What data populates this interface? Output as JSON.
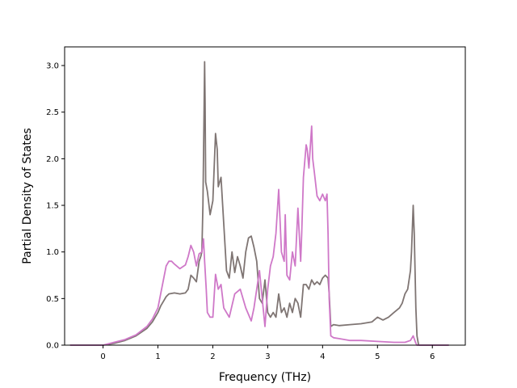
{
  "chart_data": {
    "type": "line",
    "title": "",
    "xlabel": "Frequency (THz)",
    "ylabel": "Partial Density of States",
    "xlim": [
      -0.7,
      6.6
    ],
    "ylim": [
      0.0,
      3.2
    ],
    "xticks": [
      0,
      1,
      2,
      3,
      4,
      5,
      6
    ],
    "yticks": [
      0.0,
      0.5,
      1.0,
      1.5,
      2.0,
      2.5,
      3.0
    ],
    "xtick_labels": [
      "0",
      "1",
      "2",
      "3",
      "4",
      "5",
      "6"
    ],
    "ytick_labels": [
      "0.0",
      "0.5",
      "1.0",
      "1.5",
      "2.0",
      "2.5",
      "3.0"
    ],
    "grid": false,
    "legend": "none",
    "series": [
      {
        "color": "#7f7573",
        "x": [
          -0.6,
          0.0,
          0.2,
          0.4,
          0.6,
          0.8,
          0.9,
          1.0,
          1.05,
          1.1,
          1.15,
          1.2,
          1.3,
          1.4,
          1.5,
          1.55,
          1.6,
          1.65,
          1.7,
          1.75,
          1.78,
          1.8,
          1.82,
          1.84,
          1.85,
          1.86,
          1.87,
          1.9,
          1.95,
          2.0,
          2.05,
          2.08,
          2.1,
          2.15,
          2.2,
          2.25,
          2.3,
          2.35,
          2.4,
          2.45,
          2.5,
          2.55,
          2.6,
          2.65,
          2.7,
          2.75,
          2.8,
          2.85,
          2.9,
          2.95,
          3.0,
          3.05,
          3.1,
          3.15,
          3.2,
          3.25,
          3.3,
          3.35,
          3.4,
          3.45,
          3.5,
          3.55,
          3.6,
          3.65,
          3.7,
          3.75,
          3.8,
          3.85,
          3.9,
          3.95,
          4.0,
          4.05,
          4.1,
          4.12,
          4.15,
          4.2,
          4.3,
          4.5,
          4.7,
          4.9,
          5.0,
          5.1,
          5.2,
          5.3,
          5.4,
          5.45,
          5.5,
          5.55,
          5.6,
          5.62,
          5.65,
          5.67,
          5.7,
          5.72,
          5.75,
          6.0,
          6.3
        ],
        "y": [
          0.0,
          0.0,
          0.02,
          0.05,
          0.1,
          0.18,
          0.25,
          0.35,
          0.42,
          0.47,
          0.52,
          0.55,
          0.56,
          0.55,
          0.56,
          0.6,
          0.75,
          0.72,
          0.68,
          0.9,
          0.95,
          1.0,
          1.5,
          2.5,
          3.04,
          2.6,
          1.75,
          1.65,
          1.4,
          1.55,
          2.27,
          2.1,
          1.7,
          1.8,
          1.3,
          0.8,
          0.72,
          1.0,
          0.78,
          0.95,
          0.85,
          0.72,
          1.0,
          1.15,
          1.17,
          1.05,
          0.9,
          0.5,
          0.45,
          0.7,
          0.35,
          0.3,
          0.35,
          0.3,
          0.55,
          0.35,
          0.4,
          0.3,
          0.45,
          0.35,
          0.5,
          0.45,
          0.3,
          0.65,
          0.65,
          0.6,
          0.7,
          0.65,
          0.68,
          0.65,
          0.72,
          0.75,
          0.72,
          0.55,
          0.2,
          0.22,
          0.21,
          0.22,
          0.23,
          0.25,
          0.3,
          0.27,
          0.3,
          0.35,
          0.4,
          0.45,
          0.55,
          0.6,
          0.8,
          1.0,
          1.5,
          1.2,
          0.4,
          0.1,
          0.0,
          0.0,
          0.0
        ]
      },
      {
        "color": "#cf78c8",
        "x": [
          -0.6,
          0.0,
          0.2,
          0.4,
          0.6,
          0.8,
          0.9,
          1.0,
          1.05,
          1.1,
          1.15,
          1.2,
          1.25,
          1.3,
          1.4,
          1.5,
          1.55,
          1.6,
          1.65,
          1.7,
          1.75,
          1.8,
          1.83,
          1.85,
          1.88,
          1.9,
          1.95,
          2.0,
          2.05,
          2.1,
          2.15,
          2.2,
          2.3,
          2.4,
          2.5,
          2.6,
          2.7,
          2.75,
          2.8,
          2.85,
          2.9,
          2.95,
          3.0,
          3.05,
          3.1,
          3.15,
          3.2,
          3.25,
          3.3,
          3.32,
          3.35,
          3.4,
          3.45,
          3.5,
          3.55,
          3.6,
          3.62,
          3.65,
          3.7,
          3.72,
          3.75,
          3.8,
          3.82,
          3.85,
          3.9,
          3.95,
          4.0,
          4.05,
          4.08,
          4.1,
          4.12,
          4.15,
          4.2,
          4.3,
          4.5,
          4.7,
          5.0,
          5.3,
          5.5,
          5.6,
          5.65,
          5.7,
          5.72,
          6.0,
          6.3
        ],
        "y": [
          0.0,
          0.0,
          0.03,
          0.06,
          0.11,
          0.2,
          0.28,
          0.4,
          0.55,
          0.7,
          0.85,
          0.9,
          0.9,
          0.87,
          0.82,
          0.86,
          0.95,
          1.07,
          1.0,
          0.85,
          0.98,
          1.0,
          1.14,
          0.9,
          0.6,
          0.35,
          0.3,
          0.3,
          0.76,
          0.6,
          0.65,
          0.4,
          0.3,
          0.55,
          0.6,
          0.4,
          0.26,
          0.4,
          0.6,
          0.8,
          0.5,
          0.2,
          0.6,
          0.85,
          0.95,
          1.2,
          1.67,
          1.0,
          0.9,
          1.4,
          0.75,
          0.7,
          1.0,
          0.85,
          1.47,
          0.9,
          1.2,
          1.8,
          2.15,
          2.1,
          1.9,
          2.35,
          2.0,
          1.85,
          1.6,
          1.55,
          1.62,
          1.55,
          1.62,
          1.2,
          0.5,
          0.1,
          0.08,
          0.07,
          0.05,
          0.05,
          0.04,
          0.03,
          0.03,
          0.05,
          0.1,
          0.02,
          0.0,
          0.0,
          0.0
        ]
      }
    ]
  }
}
